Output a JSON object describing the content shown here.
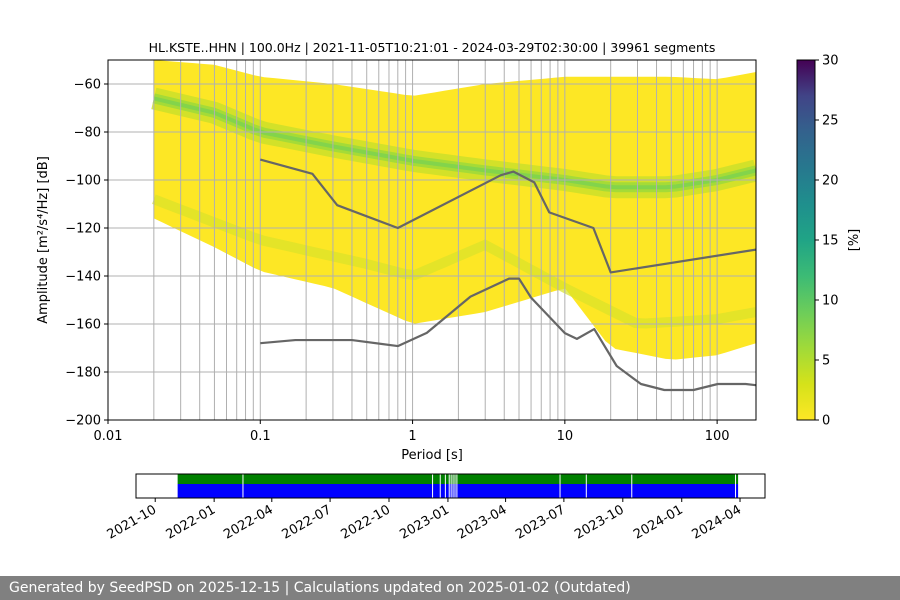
{
  "chart_data": [
    {
      "type": "heatmap",
      "title": "HL.KSTE..HHN | 100.0Hz | 2021-11-05T10:21:01 - 2024-03-29T02:30:00 | 39961 segments",
      "xlabel": "Period [s]",
      "ylabel": "Amplitude [m²/s⁴/Hz] [dB]",
      "xscale": "log",
      "xlim": [
        0.01,
        180
      ],
      "ylim": [
        -200,
        -50
      ],
      "xticks": [
        0.01,
        0.1,
        1,
        10,
        100
      ],
      "xtick_labels": [
        "0.01",
        "0.1",
        "1",
        "10",
        "100"
      ],
      "yticks": [
        -60,
        -80,
        -100,
        -120,
        -140,
        -160,
        -180,
        -200
      ],
      "ytick_labels": [
        "−60",
        "−80",
        "−100",
        "−120",
        "−140",
        "−160",
        "−180",
        "−200"
      ],
      "grid": true,
      "colorbar": {
        "label": "[%]",
        "range": [
          0,
          30
        ],
        "ticks": [
          0,
          5,
          10,
          15,
          20,
          25,
          30
        ],
        "tick_labels": [
          "0",
          "5",
          "10",
          "15",
          "20",
          "25",
          "30"
        ],
        "colormap": "viridis"
      },
      "high_noise_model": {
        "name": "NHNM",
        "period": [
          0.1,
          0.22,
          0.32,
          0.8,
          3.8,
          4.6,
          6.3,
          7.9,
          15.4,
          20,
          180
        ],
        "db": [
          -91.5,
          -97.4,
          -110.5,
          -120,
          -98,
          -96.5,
          -101,
          -113.5,
          -120,
          -138.5,
          -129
        ]
      },
      "low_noise_model": {
        "name": "NLNM",
        "period": [
          0.1,
          0.17,
          0.4,
          0.8,
          1.24,
          2.4,
          4.3,
          5,
          6,
          10,
          12,
          15.6,
          21.9,
          31.6,
          45,
          70,
          101,
          154,
          180
        ],
        "db": [
          -168,
          -166.7,
          -166.7,
          -169.2,
          -163.7,
          -148.6,
          -141.1,
          -141.1,
          -149,
          -163.8,
          -166.2,
          -162.1,
          -177.5,
          -185,
          -187.5,
          -187.5,
          -185,
          -185,
          -185.5
        ]
      },
      "ppsd_density": {
        "period_start": 0.02,
        "center_db": [
          -66,
          -72,
          -80,
          -86,
          -92,
          -96,
          -100,
          -103,
          -103,
          -100,
          -96
        ],
        "center_period": [
          0.02,
          0.05,
          0.1,
          0.3,
          1,
          3,
          10,
          20,
          50,
          100,
          180
        ],
        "upper_db": [
          -50,
          -52,
          -57,
          -60,
          -65,
          -60,
          -57,
          -57,
          -57,
          -58,
          -55
        ],
        "lower_db": [
          -116,
          -128,
          -138,
          -145,
          -160,
          -155,
          -145,
          -170,
          -175,
          -173,
          -168
        ]
      },
      "gridline_periods": [
        0.02,
        0.03,
        0.04,
        0.05,
        0.06,
        0.07,
        0.08,
        0.09,
        0.2,
        0.3,
        0.4,
        0.5,
        0.6,
        0.7,
        0.8,
        0.9,
        2,
        3,
        4,
        5,
        6,
        7,
        8,
        9,
        20,
        30,
        40,
        50,
        60,
        70,
        80,
        90
      ]
    },
    {
      "type": "timeline",
      "xlim": [
        "2021-09-01",
        "2024-05-10"
      ],
      "tick_labels": [
        "2021-10",
        "2022-01",
        "2022-04",
        "2022-07",
        "2022-10",
        "2023-01",
        "2023-04",
        "2023-07",
        "2023-10",
        "2024-01",
        "2024-04"
      ],
      "tick_dates": [
        "2021-10-01",
        "2022-01-01",
        "2022-04-01",
        "2022-07-01",
        "2022-10-01",
        "2023-01-01",
        "2023-04-01",
        "2023-07-01",
        "2023-10-01",
        "2024-01-01",
        "2024-04-01"
      ],
      "coverage_start": "2021-11-05",
      "coverage_end": "2024-03-29",
      "green_color": "#008000",
      "blue_color": "#0000ff",
      "gap_dates": [
        "2022-02-15",
        "2022-12-08",
        "2022-12-20",
        "2022-12-28",
        "2023-01-03",
        "2023-01-06",
        "2023-01-09",
        "2023-01-12",
        "2023-01-15",
        "2023-06-25",
        "2023-08-05",
        "2023-10-15",
        "2024-03-25"
      ]
    }
  ],
  "footer": {
    "text": "Generated by SeedPSD on 2025-12-15 | Calculations updated on 2025-01-02 (Outdated)"
  }
}
